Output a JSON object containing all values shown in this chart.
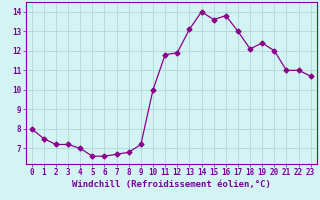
{
  "x": [
    0,
    1,
    2,
    3,
    4,
    5,
    6,
    7,
    8,
    9,
    10,
    11,
    12,
    13,
    14,
    15,
    16,
    17,
    18,
    19,
    20,
    21,
    22,
    23
  ],
  "y": [
    8.0,
    7.5,
    7.2,
    7.2,
    7.0,
    6.6,
    6.6,
    6.7,
    6.8,
    7.2,
    10.0,
    11.8,
    11.9,
    13.1,
    14.0,
    13.6,
    13.8,
    13.0,
    12.1,
    12.4,
    12.0,
    11.0,
    11.0,
    10.7
  ],
  "line_color": "#8b008b",
  "marker": "D",
  "marker_size": 2.5,
  "bg_color": "#d4f4f4",
  "grid_color": "#b0d8d8",
  "xlabel": "Windchill (Refroidissement éolien,°C)",
  "ylim": [
    6.2,
    14.5
  ],
  "xlim": [
    -0.5,
    23.5
  ],
  "yticks": [
    7,
    8,
    9,
    10,
    11,
    12,
    13,
    14
  ],
  "xticks": [
    0,
    1,
    2,
    3,
    4,
    5,
    6,
    7,
    8,
    9,
    10,
    11,
    12,
    13,
    14,
    15,
    16,
    17,
    18,
    19,
    20,
    21,
    22,
    23
  ],
  "tick_fontsize": 5.5,
  "xlabel_fontsize": 6.5,
  "label_color": "#7b00a0",
  "spine_color": "#7b00a0"
}
